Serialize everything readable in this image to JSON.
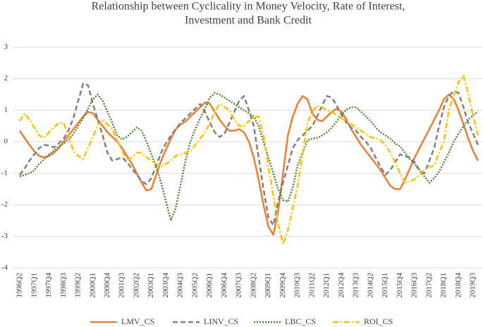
{
  "chart_data": {
    "type": "line",
    "title": [
      "Relationship between Cyclicality in Money Velocity, Rate of Interest,",
      "Investment and Bank Credit"
    ],
    "categories": [
      "1996Q2",
      null,
      null,
      "1997Q1",
      null,
      null,
      "1997Q4",
      null,
      null,
      "1998Q3",
      null,
      null,
      "1999Q2",
      null,
      null,
      "2000Q1",
      null,
      null,
      "2000Q4",
      null,
      null,
      "2001Q3",
      null,
      null,
      "2002Q2",
      null,
      null,
      "2003Q1",
      null,
      null,
      "2003Q4",
      null,
      null,
      "2004Q3",
      null,
      null,
      "2005Q2",
      null,
      null,
      "2006Q1",
      null,
      null,
      "2006Q4",
      null,
      null,
      "2007Q3",
      null,
      null,
      "2008Q2",
      null,
      null,
      "2009Q1",
      null,
      null,
      "2009Q4",
      null,
      null,
      "2010Q3",
      null,
      null,
      "2011Q2",
      null,
      null,
      "2012Q1",
      null,
      null,
      "2012Q4",
      null,
      null,
      "2013Q3",
      null,
      null,
      "2014Q2",
      null,
      null,
      "2015Q1",
      null,
      null,
      "2015Q4",
      null,
      null,
      "2016Q3",
      null,
      null,
      "2017Q2",
      null,
      null,
      "2018Q1",
      null,
      null,
      "2018Q4",
      null,
      null,
      "2019Q3",
      null
    ],
    "series": [
      {
        "name": "LMV_CS",
        "color": "#ed7d31",
        "dash": "solid",
        "values": [
          0.35,
          0.12,
          -0.1,
          -0.3,
          -0.45,
          -0.5,
          -0.45,
          -0.35,
          -0.2,
          0.0,
          0.2,
          0.4,
          0.6,
          0.8,
          0.95,
          0.9,
          0.7,
          0.5,
          0.3,
          0.15,
          0.0,
          -0.2,
          -0.45,
          -0.7,
          -1.0,
          -1.3,
          -1.55,
          -1.5,
          -1.05,
          -0.6,
          -0.25,
          0.1,
          0.4,
          0.55,
          0.65,
          0.8,
          0.95,
          1.1,
          1.25,
          1.2,
          0.95,
          0.7,
          0.5,
          0.35,
          0.35,
          0.4,
          0.3,
          0.0,
          -0.5,
          -1.2,
          -2.0,
          -2.7,
          -2.95,
          -2.2,
          -1.0,
          0.2,
          0.8,
          1.2,
          1.45,
          1.35,
          0.9,
          0.7,
          0.65,
          0.8,
          0.95,
          1.05,
          0.95,
          0.7,
          0.4,
          0.15,
          -0.1,
          -0.3,
          -0.5,
          -0.7,
          -0.9,
          -1.15,
          -1.4,
          -1.5,
          -1.5,
          -1.2,
          -0.85,
          -0.5,
          -0.2,
          0.1,
          0.4,
          0.7,
          1.0,
          1.35,
          1.5,
          1.35,
          1.0,
          0.55,
          0.1,
          -0.3,
          -0.6
        ]
      },
      {
        "name": "LINV_CS",
        "color": "#7f7f7f",
        "dash": "dashed",
        "values": [
          -1.05,
          -0.85,
          -0.6,
          -0.4,
          -0.2,
          -0.1,
          -0.12,
          -0.18,
          -0.05,
          0.1,
          0.35,
          0.75,
          1.3,
          1.85,
          1.8,
          1.2,
          0.7,
          0.2,
          -0.35,
          -0.6,
          -0.55,
          -0.5,
          -0.65,
          -0.85,
          -1.05,
          -1.25,
          -1.35,
          -1.15,
          -0.75,
          -0.35,
          -0.05,
          0.2,
          0.4,
          0.6,
          0.75,
          0.9,
          1.05,
          1.2,
          0.95,
          0.6,
          0.3,
          0.15,
          0.25,
          0.6,
          0.95,
          1.3,
          1.45,
          1.0,
          0.5,
          -0.5,
          -1.5,
          -2.4,
          -2.65,
          -1.9,
          -1.3,
          -0.75,
          -0.2,
          0.05,
          0.2,
          0.35,
          0.5,
          0.8,
          1.15,
          1.45,
          1.4,
          1.15,
          0.85,
          0.6,
          0.45,
          0.35,
          0.15,
          0.0,
          -0.2,
          -0.5,
          -0.8,
          -1.05,
          -0.9,
          -0.65,
          -0.4,
          -0.45,
          -0.5,
          -0.65,
          -0.9,
          -1.0,
          -0.6,
          -0.2,
          0.5,
          1.1,
          1.45,
          1.6,
          1.55,
          1.1,
          0.6,
          0.25,
          -0.1
        ]
      },
      {
        "name": "LBC_CS",
        "color": "#548235",
        "dash": "dotted",
        "values": [
          -1.1,
          -1.05,
          -1.0,
          -0.9,
          -0.7,
          -0.55,
          -0.4,
          -0.28,
          -0.15,
          -0.05,
          0.05,
          0.25,
          0.5,
          0.75,
          1.05,
          1.35,
          1.5,
          1.3,
          0.95,
          0.6,
          0.2,
          0.08,
          0.15,
          0.3,
          0.45,
          0.35,
          0.0,
          -0.4,
          -0.8,
          -1.3,
          -1.9,
          -2.5,
          -2.1,
          -1.35,
          -0.6,
          0.0,
          0.4,
          0.75,
          1.05,
          1.4,
          1.55,
          1.5,
          1.4,
          1.3,
          1.2,
          1.1,
          1.0,
          0.9,
          0.8,
          0.5,
          0.0,
          -0.5,
          -1.0,
          -1.5,
          -1.85,
          -1.9,
          -1.45,
          -0.75,
          -0.35,
          0.05,
          0.1,
          0.12,
          0.2,
          0.3,
          0.45,
          0.65,
          0.85,
          1.02,
          1.1,
          1.1,
          0.95,
          0.8,
          0.65,
          0.45,
          0.3,
          0.2,
          0.1,
          -0.05,
          -0.15,
          -0.35,
          -0.55,
          -0.7,
          -0.9,
          -1.1,
          -1.3,
          -1.15,
          -0.95,
          -0.65,
          -0.35,
          0.0,
          0.25,
          0.5,
          0.7,
          0.85,
          0.95
        ]
      },
      {
        "name": "ROI_CS",
        "color": "#ffc000",
        "dash": "dashdot",
        "values": [
          0.65,
          0.9,
          0.7,
          0.45,
          0.2,
          0.12,
          0.3,
          0.45,
          0.6,
          0.6,
          0.2,
          -0.3,
          -0.45,
          -0.55,
          -0.2,
          0.15,
          0.5,
          0.7,
          0.55,
          0.4,
          0.05,
          -0.3,
          -0.6,
          -0.5,
          -0.35,
          -0.35,
          -0.5,
          -0.6,
          -0.7,
          -0.8,
          -0.7,
          -0.6,
          -0.45,
          -0.4,
          -0.35,
          -0.3,
          -0.1,
          0.1,
          0.3,
          0.6,
          0.95,
          1.2,
          1.1,
          1.0,
          0.7,
          0.5,
          0.5,
          0.65,
          0.8,
          0.8,
          0.2,
          -0.8,
          -1.7,
          -2.6,
          -3.25,
          -2.8,
          -2.1,
          -1.4,
          -0.4,
          0.6,
          0.95,
          1.15,
          1.1,
          1.0,
          0.95,
          0.85,
          0.75,
          0.65,
          0.55,
          0.45,
          0.35,
          0.25,
          0.15,
          0.1,
          0.05,
          -0.1,
          -0.35,
          -0.65,
          -1.0,
          -1.3,
          -1.25,
          -1.2,
          -1.05,
          -0.9,
          -0.8,
          -0.75,
          -0.35,
          0.0,
          1.0,
          1.45,
          1.9,
          2.1,
          1.5,
          0.8,
          0.2
        ]
      }
    ],
    "ylim": [
      -4,
      3
    ],
    "yticks": [
      -4,
      -3,
      -2,
      -1,
      0,
      1,
      2,
      3
    ],
    "grid": true,
    "legend": "bottom"
  }
}
